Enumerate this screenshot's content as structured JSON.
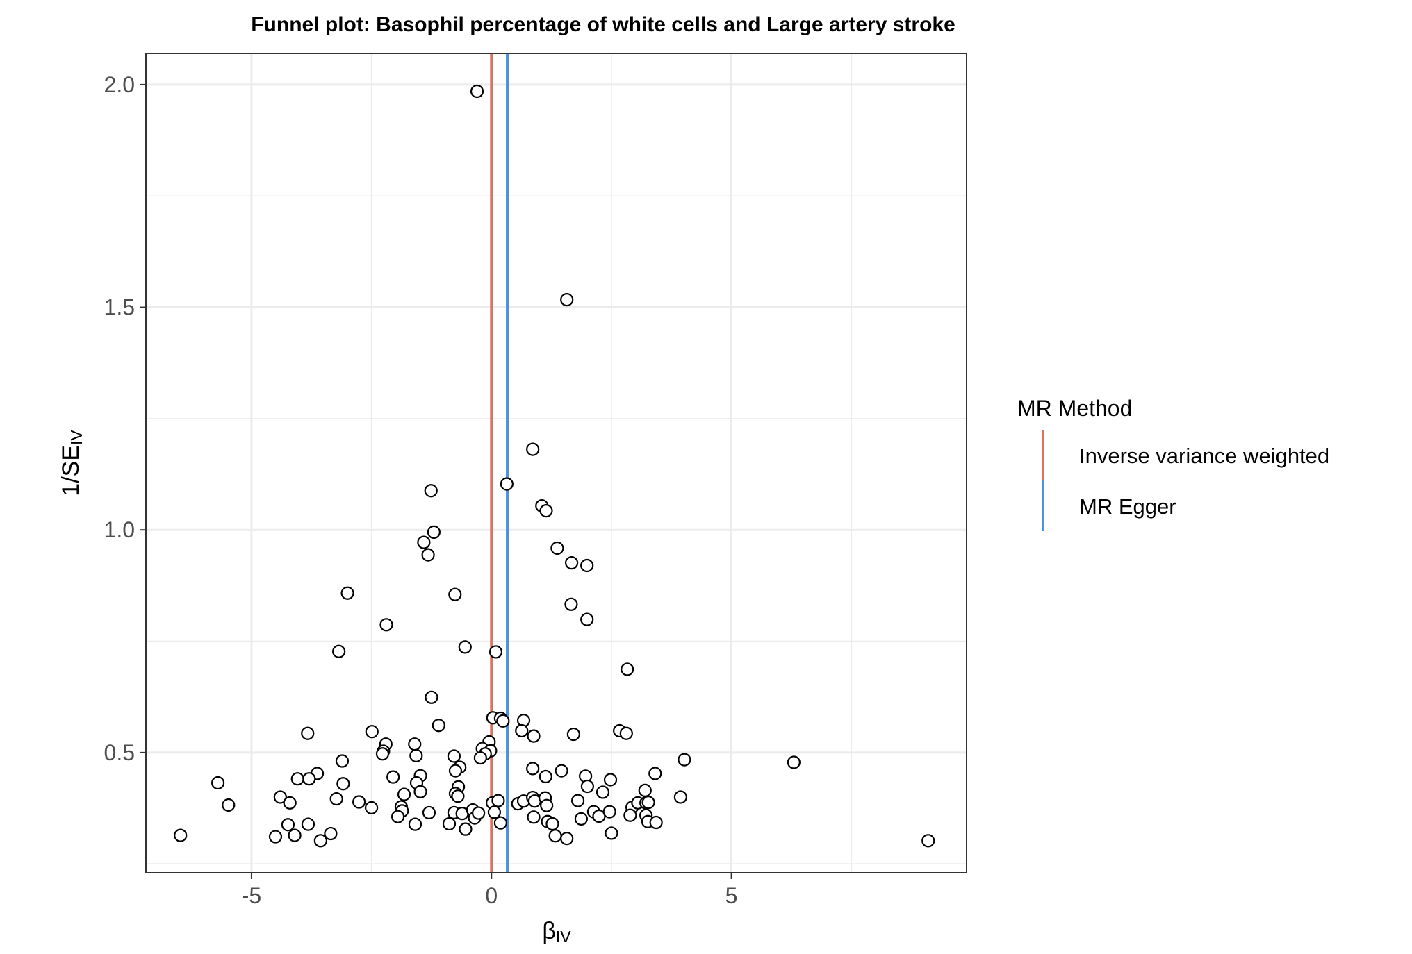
{
  "chart_data": {
    "type": "scatter",
    "title": "Funnel plot: Basophil percentage of white cells and Large artery stroke",
    "xlabel": {
      "main": "β",
      "sub": "IV"
    },
    "ylabel": {
      "main": "1/SE",
      "sub": "IV"
    },
    "xlim": [
      -7.2,
      9.9
    ],
    "ylim": [
      0.23,
      2.07
    ],
    "x_ticks": [
      {
        "value": -5,
        "label": "-5"
      },
      {
        "value": 0,
        "label": "0"
      },
      {
        "value": 5,
        "label": "5"
      }
    ],
    "y_ticks": [
      {
        "value": 0.5,
        "label": "0.5"
      },
      {
        "value": 1.0,
        "label": "1.0"
      },
      {
        "value": 1.5,
        "label": "1.5"
      },
      {
        "value": 2.0,
        "label": "2.0"
      }
    ],
    "x_minor": [
      -7.5,
      -2.5,
      2.5,
      7.5
    ],
    "y_minor": [
      0.25,
      0.75,
      1.25,
      1.75
    ],
    "grid": true,
    "legend": {
      "title": "MR Method",
      "position": "right",
      "entries": [
        {
          "name": "Inverse variance weighted",
          "color": "#E07060"
        },
        {
          "name": "MR Egger",
          "color": "#4A8FE8"
        }
      ]
    },
    "vlines": [
      {
        "name": "Inverse variance weighted",
        "x": 0.0,
        "color": "#E07060"
      },
      {
        "name": "MR Egger",
        "x": 0.33,
        "color": "#4A8FE8"
      }
    ],
    "points": [
      [
        -0.3,
        1.985
      ],
      [
        1.57,
        1.517
      ],
      [
        0.86,
        1.181
      ],
      [
        0.32,
        1.103
      ],
      [
        -1.26,
        1.088
      ],
      [
        1.05,
        1.054
      ],
      [
        1.14,
        1.043
      ],
      [
        -1.2,
        0.995
      ],
      [
        -1.41,
        0.972
      ],
      [
        -1.32,
        0.944
      ],
      [
        1.37,
        0.959
      ],
      [
        1.67,
        0.926
      ],
      [
        1.99,
        0.92
      ],
      [
        -3.0,
        0.858
      ],
      [
        -0.76,
        0.855
      ],
      [
        1.66,
        0.833
      ],
      [
        1.99,
        0.799
      ],
      [
        -2.19,
        0.787
      ],
      [
        -0.55,
        0.737
      ],
      [
        -3.18,
        0.727
      ],
      [
        0.09,
        0.726
      ],
      [
        2.83,
        0.687
      ],
      [
        -1.25,
        0.624
      ],
      [
        -1.1,
        0.561
      ],
      [
        0.03,
        0.578
      ],
      [
        0.19,
        0.577
      ],
      [
        0.24,
        0.571
      ],
      [
        0.67,
        0.572
      ],
      [
        0.63,
        0.549
      ],
      [
        0.88,
        0.537
      ],
      [
        1.71,
        0.541
      ],
      [
        2.67,
        0.549
      ],
      [
        2.81,
        0.543
      ],
      [
        4.02,
        0.484
      ],
      [
        6.3,
        0.478
      ],
      [
        -3.83,
        0.543
      ],
      [
        -2.49,
        0.547
      ],
      [
        -2.2,
        0.519
      ],
      [
        -2.25,
        0.503
      ],
      [
        -2.27,
        0.497
      ],
      [
        -1.6,
        0.519
      ],
      [
        -1.57,
        0.493
      ],
      [
        -3.11,
        0.481
      ],
      [
        -0.05,
        0.524
      ],
      [
        -0.19,
        0.509
      ],
      [
        -0.02,
        0.504
      ],
      [
        -0.13,
        0.497
      ],
      [
        -0.23,
        0.488
      ],
      [
        -0.78,
        0.492
      ],
      [
        -0.66,
        0.467
      ],
      [
        -0.75,
        0.459
      ],
      [
        -0.69,
        0.423
      ],
      [
        -0.75,
        0.408
      ],
      [
        -0.7,
        0.402
      ],
      [
        0.86,
        0.464
      ],
      [
        1.13,
        0.446
      ],
      [
        1.46,
        0.459
      ],
      [
        1.96,
        0.447
      ],
      [
        2.0,
        0.424
      ],
      [
        2.32,
        0.411
      ],
      [
        2.48,
        0.439
      ],
      [
        3.41,
        0.453
      ],
      [
        3.2,
        0.415
      ],
      [
        3.94,
        0.4
      ],
      [
        -3.63,
        0.453
      ],
      [
        -4.04,
        0.441
      ],
      [
        -3.8,
        0.441
      ],
      [
        -2.05,
        0.445
      ],
      [
        -1.48,
        0.448
      ],
      [
        -1.56,
        0.432
      ],
      [
        -1.48,
        0.412
      ],
      [
        -1.82,
        0.406
      ],
      [
        -3.09,
        0.43
      ],
      [
        -3.23,
        0.396
      ],
      [
        -2.76,
        0.389
      ],
      [
        -2.5,
        0.376
      ],
      [
        -5.7,
        0.432
      ],
      [
        -5.48,
        0.382
      ],
      [
        -4.4,
        0.4
      ],
      [
        -4.2,
        0.387
      ],
      [
        -1.88,
        0.378
      ],
      [
        -1.86,
        0.369
      ],
      [
        -1.95,
        0.356
      ],
      [
        -1.59,
        0.339
      ],
      [
        -1.3,
        0.365
      ],
      [
        -0.88,
        0.34
      ],
      [
        -0.78,
        0.365
      ],
      [
        -0.61,
        0.363
      ],
      [
        -0.54,
        0.328
      ],
      [
        -0.39,
        0.371
      ],
      [
        -0.35,
        0.353
      ],
      [
        -0.27,
        0.364
      ],
      [
        0.02,
        0.387
      ],
      [
        0.06,
        0.366
      ],
      [
        0.14,
        0.392
      ],
      [
        0.19,
        0.342
      ],
      [
        0.55,
        0.385
      ],
      [
        0.67,
        0.391
      ],
      [
        0.86,
        0.399
      ],
      [
        0.9,
        0.391
      ],
      [
        0.88,
        0.355
      ],
      [
        1.12,
        0.398
      ],
      [
        1.15,
        0.381
      ],
      [
        1.17,
        0.345
      ],
      [
        1.27,
        0.34
      ],
      [
        1.33,
        0.313
      ],
      [
        1.57,
        0.307
      ],
      [
        1.8,
        0.392
      ],
      [
        1.87,
        0.351
      ],
      [
        2.13,
        0.367
      ],
      [
        2.24,
        0.357
      ],
      [
        2.46,
        0.367
      ],
      [
        2.5,
        0.319
      ],
      [
        2.93,
        0.377
      ],
      [
        2.89,
        0.359
      ],
      [
        3.05,
        0.387
      ],
      [
        3.22,
        0.387
      ],
      [
        3.27,
        0.388
      ],
      [
        3.22,
        0.359
      ],
      [
        3.26,
        0.345
      ],
      [
        3.43,
        0.343
      ],
      [
        -6.48,
        0.314
      ],
      [
        -4.5,
        0.311
      ],
      [
        -4.24,
        0.338
      ],
      [
        -4.1,
        0.314
      ],
      [
        -3.82,
        0.339
      ],
      [
        -3.56,
        0.302
      ],
      [
        -3.35,
        0.318
      ],
      [
        9.1,
        0.302
      ]
    ]
  }
}
